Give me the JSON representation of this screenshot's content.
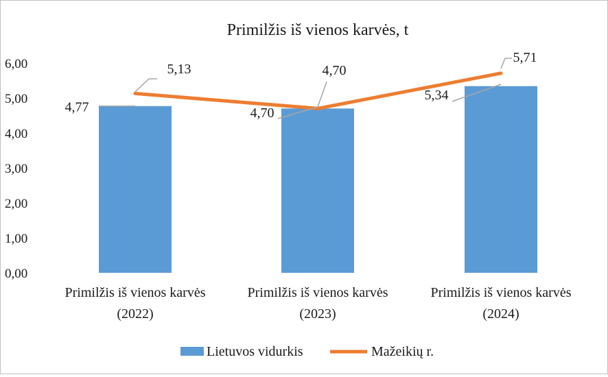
{
  "chart_data": {
    "type": "bar",
    "title": "Primilžis iš vienos karvės, t",
    "categories": [
      [
        "Primilžis iš vienos karvės",
        "(2022)"
      ],
      [
        "Primilžis iš vienos karvės",
        "(2023)"
      ],
      [
        "Primilžis iš vienos karvės",
        "(2024)"
      ]
    ],
    "ylim": [
      0,
      6
    ],
    "yticks": [
      "0,00",
      "1,00",
      "2,00",
      "3,00",
      "4,00",
      "5,00",
      "6,00"
    ],
    "grid": false,
    "legend_position": "bottom",
    "series": [
      {
        "name": "Lietuvos vidurkis",
        "type": "bar",
        "color": "#5b9bd5",
        "values": [
          4.77,
          4.7,
          5.34
        ],
        "labels": [
          "4,77",
          "4,70",
          "5,34"
        ]
      },
      {
        "name": "Mažeikių r.",
        "type": "line",
        "color": "#ed7d31",
        "values": [
          5.13,
          4.7,
          5.71
        ],
        "labels": [
          "5,13",
          "4,70",
          "5,71"
        ]
      }
    ],
    "leader_line_color": "#a6a6a6"
  }
}
